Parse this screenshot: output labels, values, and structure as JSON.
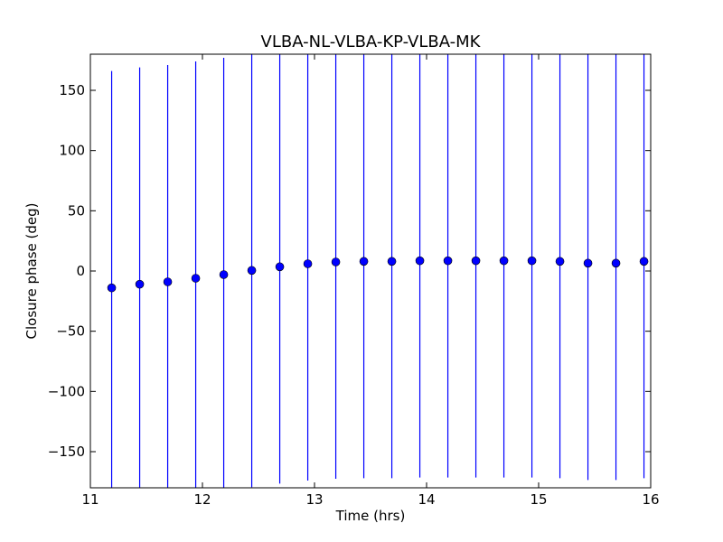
{
  "chart_data": {
    "type": "scatter",
    "title": "VLBA-NL-VLBA-KP-VLBA-MK",
    "xlabel": "Time (hrs)",
    "ylabel": "Closure phase (deg)",
    "xlim": [
      11,
      16
    ],
    "ylim": [
      -180,
      180
    ],
    "xticks": [
      11,
      12,
      13,
      14,
      15,
      16
    ],
    "xtick_labels": [
      "11",
      "12",
      "13",
      "14",
      "15",
      "16"
    ],
    "yticks": [
      150,
      100,
      50,
      0,
      -50,
      -100,
      -150
    ],
    "ytick_labels": [
      "150",
      "100",
      "50",
      "0",
      "−50",
      "−100",
      "−150"
    ],
    "grid": false,
    "legend": "none",
    "series": [
      {
        "x": [
          11.19,
          11.44,
          11.69,
          11.94,
          12.19,
          12.44,
          12.69,
          12.94,
          13.19,
          13.44,
          13.69,
          13.94,
          14.19,
          14.44,
          14.69,
          14.94,
          15.19,
          15.44,
          15.69,
          15.94
        ],
        "y": [
          -14,
          -11,
          -9,
          -6,
          -3,
          0.5,
          3.5,
          6,
          7.5,
          8,
          8,
          8.5,
          8.5,
          8.5,
          8.5,
          8.5,
          8,
          6.5,
          6.5,
          8
        ],
        "yerr": [
          180,
          180,
          180,
          180,
          180,
          180,
          180,
          180,
          180,
          180,
          180,
          180,
          180,
          180,
          180,
          180,
          180,
          180,
          180,
          180
        ],
        "color": "#0000ff"
      }
    ]
  }
}
